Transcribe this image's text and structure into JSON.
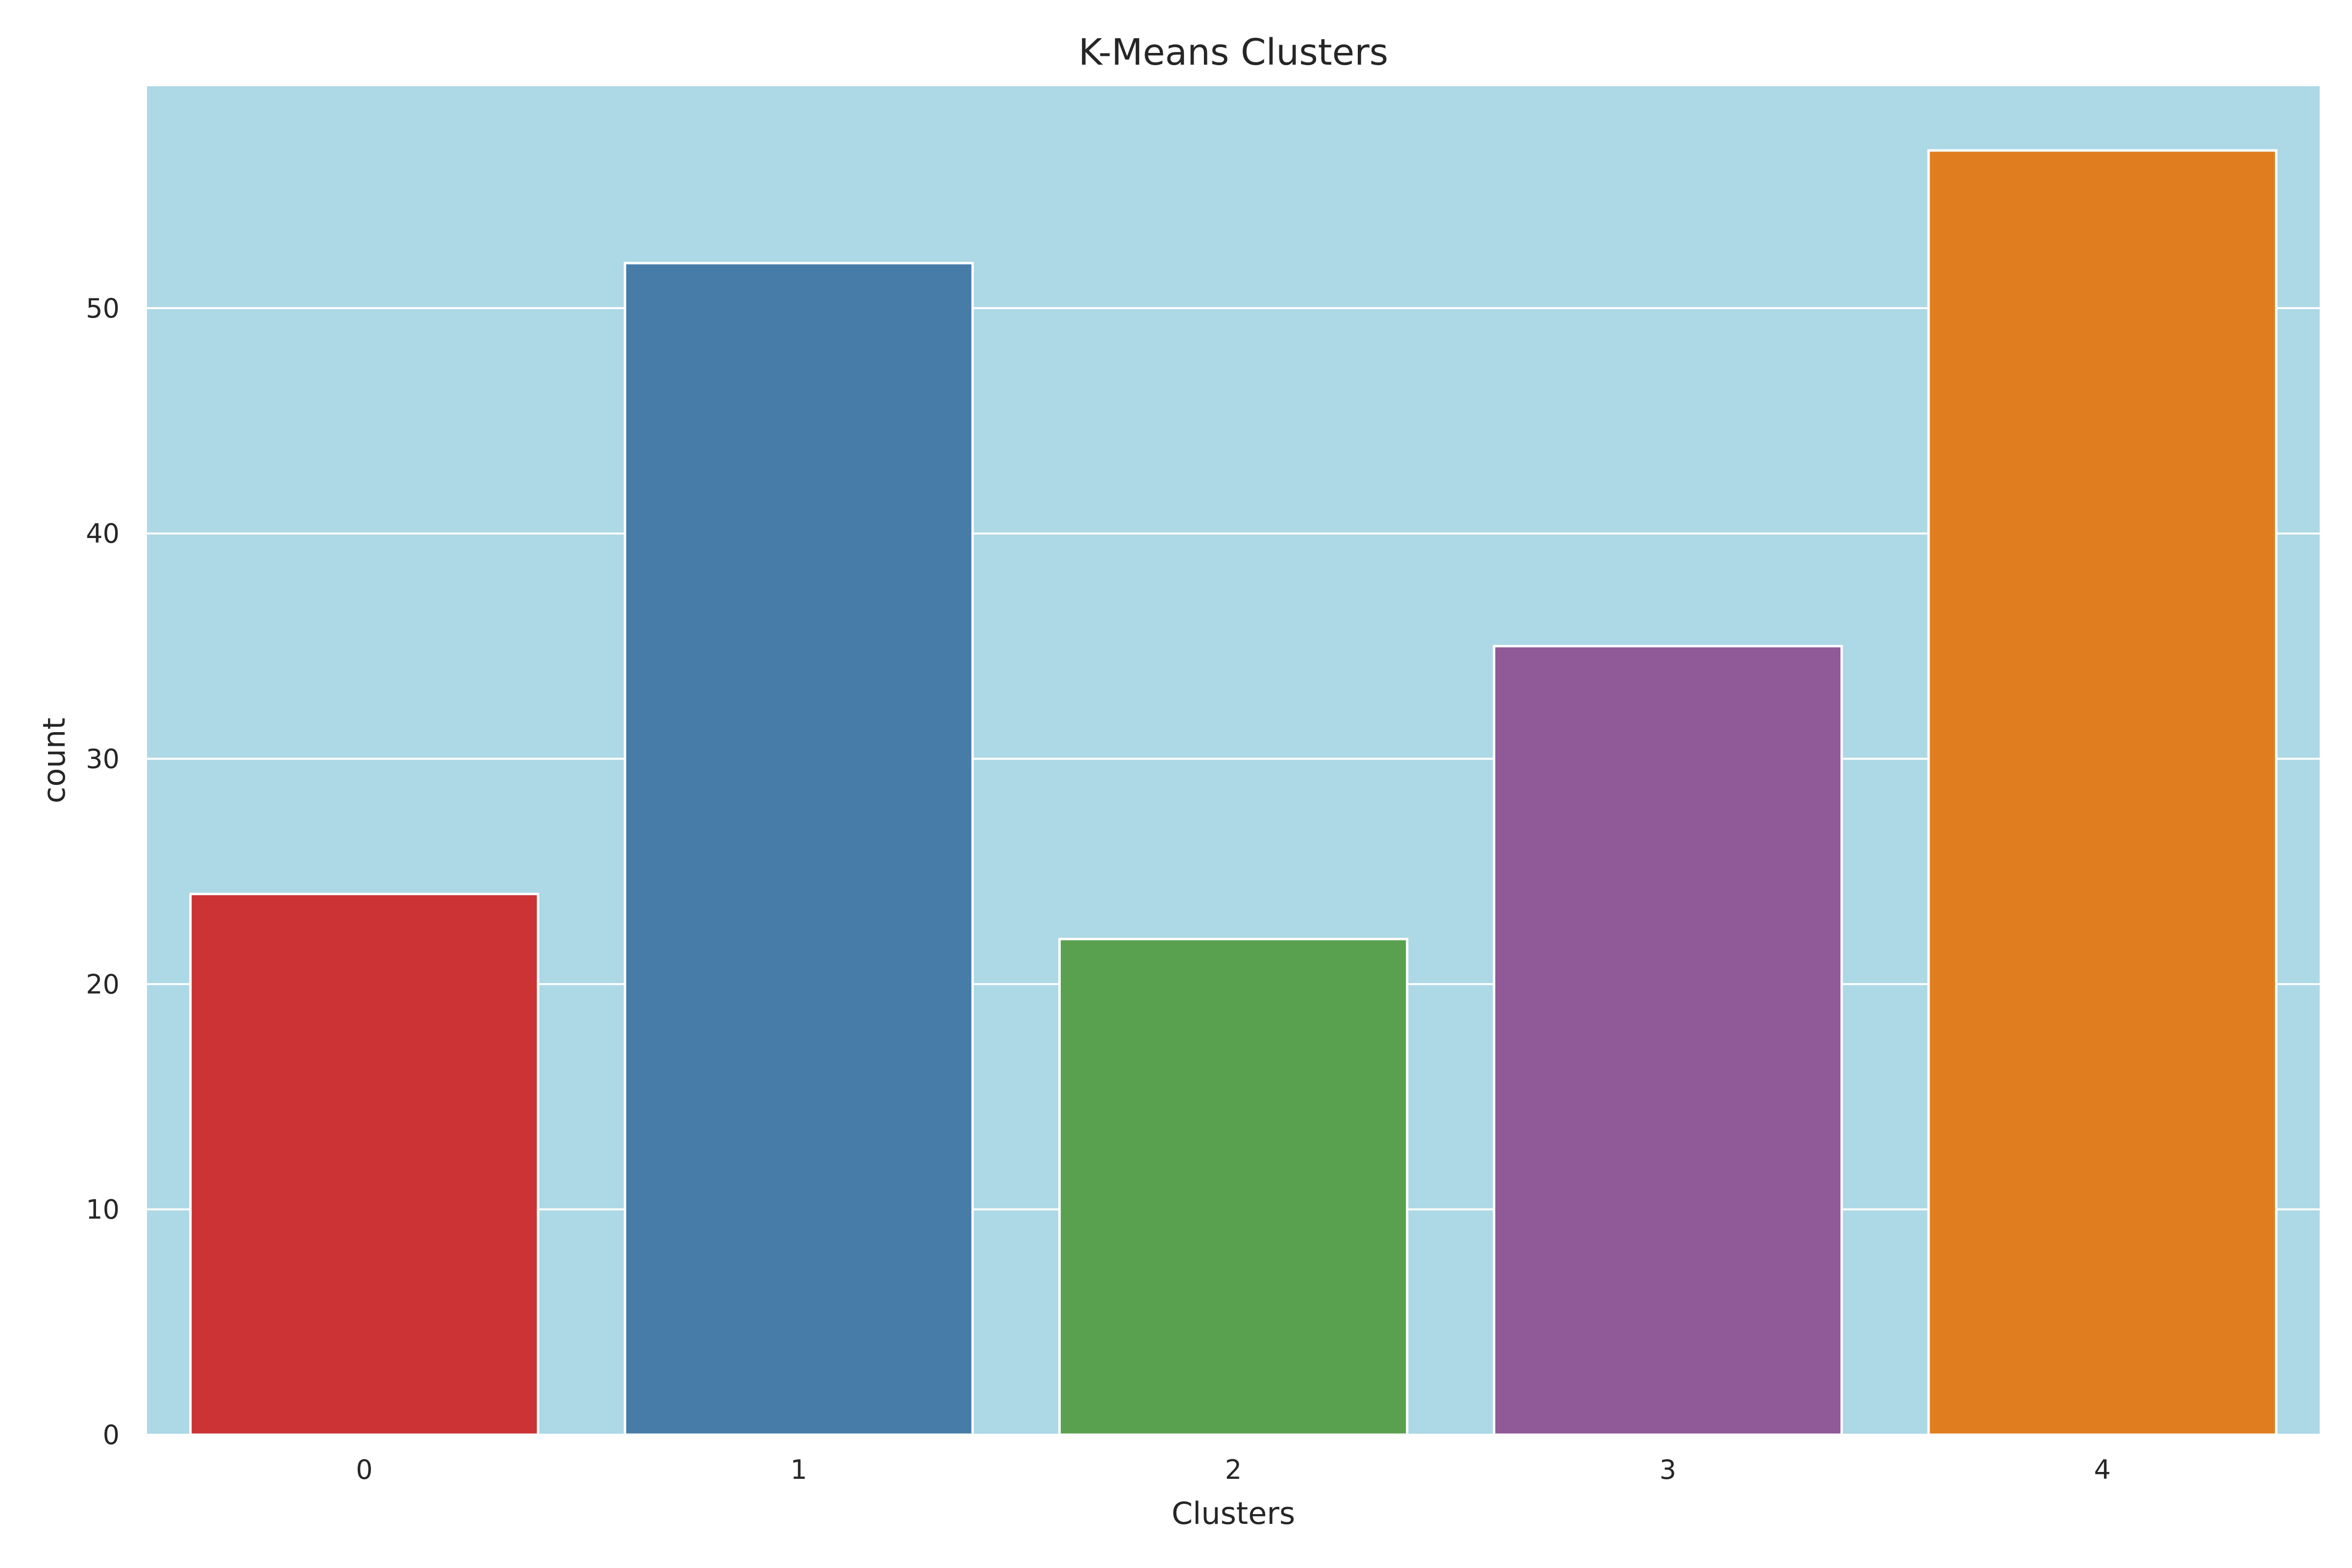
{
  "chart_data": {
    "type": "bar",
    "title": "K-Means Clusters",
    "xlabel": "Clusters",
    "ylabel": "count",
    "categories": [
      "0",
      "1",
      "2",
      "3",
      "4"
    ],
    "values": [
      24,
      52,
      22,
      35,
      57
    ],
    "colors": [
      "#cb3335",
      "#477ca8",
      "#59a14f",
      "#905998",
      "#e07e1f"
    ],
    "yticks": [
      0,
      10,
      20,
      30,
      40,
      50
    ],
    "ylim": [
      0,
      59.85
    ],
    "grid": true,
    "plot_background": "#add8e6",
    "grid_color": "#ffffff",
    "bar_edge_color": "#ffffff"
  }
}
